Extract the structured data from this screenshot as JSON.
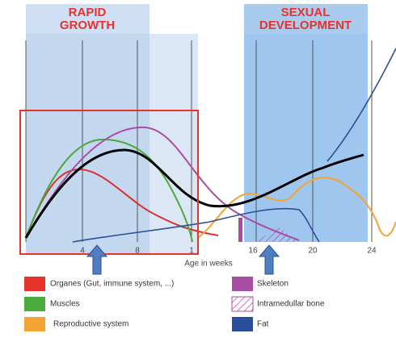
{
  "header": {
    "left_title": [
      "RAPID",
      "GROWTH"
    ],
    "right_title": [
      "SEXUAL",
      "DEVELOPMENT"
    ]
  },
  "axis": {
    "ticks": [
      "4",
      "8",
      "1",
      "16",
      "20",
      "24"
    ],
    "label": "Age in weeks"
  },
  "legend": {
    "items": [
      "Organes (Gut, immune system, ...)",
      "Muscles",
      "Reproductive system",
      "Skeleton",
      "Intramedullar bone",
      "Fat"
    ]
  }
}
